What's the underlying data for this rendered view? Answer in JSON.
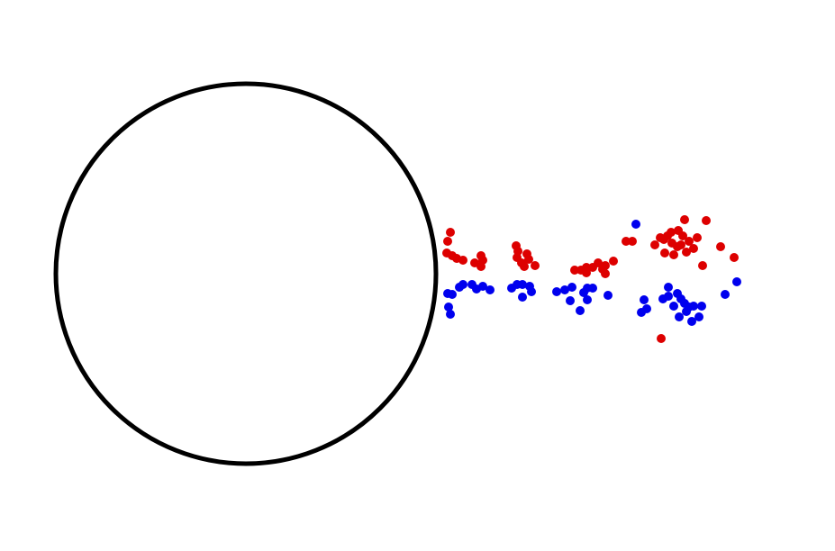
{
  "colors": {
    "background": "#ffffff",
    "circle_stroke": "#000000",
    "red_points": "#dd0000",
    "blue_points": "#0000ee"
  },
  "chart_data": {
    "type": "scatter",
    "grid": false,
    "series": [
      {
        "color": "#dd0000",
        "points": [
          [
            500,
            258
          ],
          [
            497,
            268
          ],
          [
            496,
            281
          ],
          [
            502,
            284
          ],
          [
            507,
            287
          ],
          [
            514,
            289
          ],
          [
            527,
            292
          ],
          [
            534,
            284
          ],
          [
            534,
            296
          ],
          [
            536,
            289
          ],
          [
            573,
            273
          ],
          [
            575,
            279
          ],
          [
            574,
            286
          ],
          [
            579,
            292
          ],
          [
            585,
            282
          ],
          [
            587,
            288
          ],
          [
            582,
            296
          ],
          [
            594,
            295
          ],
          [
            638,
            300
          ],
          [
            645,
            300
          ],
          [
            651,
            297
          ],
          [
            651,
            303
          ],
          [
            658,
            297
          ],
          [
            664,
            292
          ],
          [
            669,
            299
          ],
          [
            672,
            304
          ],
          [
            672,
            295
          ],
          [
            681,
            290
          ],
          [
            695,
            268
          ],
          [
            702,
            268
          ],
          [
            727,
            272
          ],
          [
            733,
            264
          ],
          [
            737,
            266
          ],
          [
            741,
            262
          ],
          [
            745,
            258
          ],
          [
            746,
            270
          ],
          [
            752,
            274
          ],
          [
            753,
            256
          ],
          [
            758,
            262
          ],
          [
            760,
            244
          ],
          [
            756,
            272
          ],
          [
            762,
            280
          ],
          [
            765,
            268
          ],
          [
            770,
            276
          ],
          [
            774,
            264
          ],
          [
            738,
            281
          ],
          [
            748,
            283
          ],
          [
            784,
            245
          ],
          [
            800,
            274
          ],
          [
            815,
            286
          ],
          [
            780,
            295
          ],
          [
            734,
            376
          ]
        ]
      },
      {
        "color": "#0000ee",
        "points": [
          [
            497,
            326
          ],
          [
            502,
            327
          ],
          [
            498,
            341
          ],
          [
            500,
            349
          ],
          [
            510,
            319
          ],
          [
            514,
            316
          ],
          [
            524,
            316
          ],
          [
            529,
            321
          ],
          [
            536,
            318
          ],
          [
            544,
            322
          ],
          [
            568,
            320
          ],
          [
            574,
            316
          ],
          [
            580,
            316
          ],
          [
            588,
            318
          ],
          [
            590,
            324
          ],
          [
            580,
            330
          ],
          [
            618,
            324
          ],
          [
            627,
            322
          ],
          [
            635,
            319
          ],
          [
            633,
            334
          ],
          [
            644,
            345
          ],
          [
            648,
            325
          ],
          [
            652,
            320
          ],
          [
            658,
            320
          ],
          [
            652,
            333
          ],
          [
            675,
            328
          ],
          [
            706,
            249
          ],
          [
            715,
            333
          ],
          [
            718,
            343
          ],
          [
            712,
            347
          ],
          [
            736,
            332
          ],
          [
            742,
            319
          ],
          [
            742,
            329
          ],
          [
            748,
            340
          ],
          [
            752,
            326
          ],
          [
            756,
            332
          ],
          [
            760,
            337
          ],
          [
            765,
            341
          ],
          [
            770,
            340
          ],
          [
            754,
            352
          ],
          [
            762,
            346
          ],
          [
            768,
            357
          ],
          [
            776,
            352
          ],
          [
            779,
            340
          ],
          [
            805,
            327
          ],
          [
            818,
            313
          ]
        ]
      }
    ]
  }
}
